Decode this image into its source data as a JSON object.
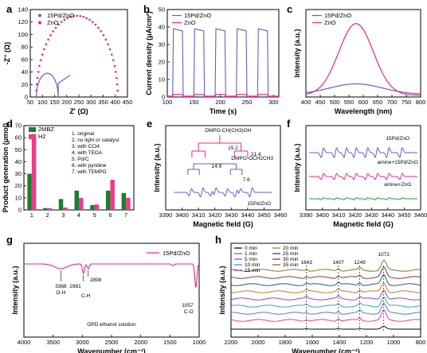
{
  "panels": {
    "a": {
      "label": "a"
    },
    "b": {
      "label": "b"
    },
    "c": {
      "label": "c"
    },
    "d": {
      "label": "d"
    },
    "e": {
      "label": "e"
    },
    "f": {
      "label": "f"
    },
    "g": {
      "label": "g"
    },
    "h": {
      "label": "h"
    }
  },
  "colors": {
    "pd": "#6a5acd",
    "zno": "#e8287a",
    "amine": "#1e9a3a",
    "mbz": "#1a7f2a",
    "h2": "#f03a8c"
  },
  "chart_data": [
    {
      "id": "a",
      "type": "scatter",
      "xlabel": "Z' (Ω)",
      "ylabel": "-Z'' (Ω)",
      "xlim": [
        50,
        450
      ],
      "ylim": [
        0,
        140
      ],
      "xticks": [
        50,
        100,
        150,
        200,
        250,
        300,
        350,
        400,
        450
      ],
      "yticks": [
        0,
        20,
        40,
        60,
        80,
        100,
        120,
        140
      ],
      "legend": [
        "15Pd/ZnO",
        "ZnO"
      ],
      "series": [
        {
          "name": "15Pd/ZnO",
          "arc": {
            "x0": 75,
            "x1": 165,
            "h": 38
          },
          "tail": [
            [
              165,
              22
            ],
            [
              215,
              35
            ]
          ]
        },
        {
          "name": "ZnO",
          "arc": {
            "x0": 75,
            "x1": 410,
            "h": 130
          }
        }
      ]
    },
    {
      "id": "b",
      "type": "line",
      "xlabel": "Time (s)",
      "ylabel": "Current density (μA/cm²)",
      "xlim": [
        100,
        310
      ],
      "ylim": [
        0,
        50
      ],
      "xticks": [
        100,
        150,
        200,
        250,
        300
      ],
      "yticks": [
        0,
        10,
        20,
        30,
        40,
        50
      ],
      "legend": [
        "15Pd/ZnO",
        "ZnO"
      ],
      "on_intervals": [
        [
          110,
          130
        ],
        [
          150,
          170
        ],
        [
          190,
          210
        ],
        [
          230,
          250
        ],
        [
          270,
          290
        ]
      ],
      "series": [
        {
          "name": "15Pd/ZnO",
          "on": 39,
          "off": 0.5
        },
        {
          "name": "ZnO",
          "on": 1.5,
          "off": 0.2
        }
      ]
    },
    {
      "id": "c",
      "type": "line",
      "xlabel": "Wavelength (nm)",
      "ylabel": "Intensity (a.u.)",
      "xlim": [
        400,
        800
      ],
      "xticks": [
        400,
        450,
        500,
        550,
        600,
        650,
        700,
        750,
        800
      ],
      "legend": [
        "15Pd/ZnO",
        "ZnO"
      ],
      "series": [
        {
          "name": "15Pd/ZnO",
          "peak": 575,
          "height": 0.12,
          "width": 130,
          "base": 0.03
        },
        {
          "name": "ZnO",
          "peak": 575,
          "height": 0.82,
          "width": 85,
          "base": 0.02
        }
      ]
    },
    {
      "id": "d",
      "type": "bar",
      "ylabel": "Product generation (μmol)",
      "ylim": [
        0,
        70
      ],
      "yticks": [
        0,
        10,
        20,
        30,
        40,
        50,
        60,
        70
      ],
      "categories": [
        "1",
        "2",
        "3",
        "4",
        "5",
        "6",
        "7"
      ],
      "series": [
        {
          "name": "2MBZ",
          "values": [
            30,
            1.5,
            9,
            16,
            4,
            16,
            14
          ]
        },
        {
          "name": "H2",
          "values": [
            63,
            1.5,
            2,
            10,
            4.5,
            25,
            10
          ]
        }
      ],
      "notes": [
        "1. original",
        "2. no light or catalyst",
        "3. with CCl4",
        "4. with TEOA",
        "5. Pd/C",
        "6. with pyridine",
        "7. with TEMPO"
      ]
    },
    {
      "id": "e",
      "type": "line",
      "xlabel": "Magnetic field (G)",
      "ylabel": "Intensity (a.u.)",
      "xlim": [
        3390,
        3460
      ],
      "xticks": [
        3390,
        3400,
        3410,
        3420,
        3430,
        3440,
        3450,
        3460
      ],
      "trace_label": "15Pd/ZnO",
      "annotations": [
        "DMPO-CH(CH3)OH",
        "15.2",
        "21.4",
        "DMPO-OCH2CH3",
        "14.9",
        "7.6"
      ]
    },
    {
      "id": "f",
      "type": "line",
      "xlabel": "Magnetic field (G)",
      "ylabel": "Intensity (a.u.)",
      "xlim": [
        3390,
        3460
      ],
      "xticks": [
        3390,
        3400,
        3410,
        3420,
        3430,
        3440,
        3450,
        3460
      ],
      "series": [
        {
          "name": "15Pd/ZnO",
          "amp": 1.0
        },
        {
          "name": "amine+15Pd/ZnO",
          "amp": 0.6
        },
        {
          "name": "amine+ZnO",
          "amp": 0.2
        }
      ]
    },
    {
      "id": "g",
      "type": "line",
      "xlabel": "Wavenumber (cm⁻¹)",
      "ylabel": "Intensity (a.u.)",
      "xlim": [
        4000,
        1000
      ],
      "xticks": [
        4000,
        3500,
        3000,
        2500,
        2000,
        1500,
        1000
      ],
      "legend": [
        "15Pd/ZnO"
      ],
      "annotations": [
        "3368",
        "O-H",
        "2981",
        "2898",
        "C-H",
        "1057",
        "C-O",
        "OPD ethanol solution"
      ]
    },
    {
      "id": "h",
      "type": "line",
      "xlabel": "Wavenumber (cm⁻¹)",
      "ylabel": "Intensity (a.u.)",
      "xlim": [
        2200,
        800
      ],
      "xticks": [
        2200,
        2000,
        1800,
        1600,
        1400,
        1200,
        1000,
        800
      ],
      "peaks": [
        "1643",
        "1407",
        "1249",
        "1072"
      ],
      "series": [
        {
          "name": "0 min",
          "color": "#000000"
        },
        {
          "name": "1 min",
          "color": "#e8287a"
        },
        {
          "name": "5 min",
          "color": "#3a6fd8"
        },
        {
          "name": "10 min",
          "color": "#20a0a0"
        },
        {
          "name": "15 min",
          "color": "#8a2be2"
        },
        {
          "name": "20 min",
          "color": "#a07a1a"
        },
        {
          "name": "25 min",
          "color": "#1a3a8a"
        },
        {
          "name": "30 min",
          "color": "#8a1a2a"
        },
        {
          "name": "35 min",
          "color": "#6a6a1a"
        }
      ]
    }
  ]
}
